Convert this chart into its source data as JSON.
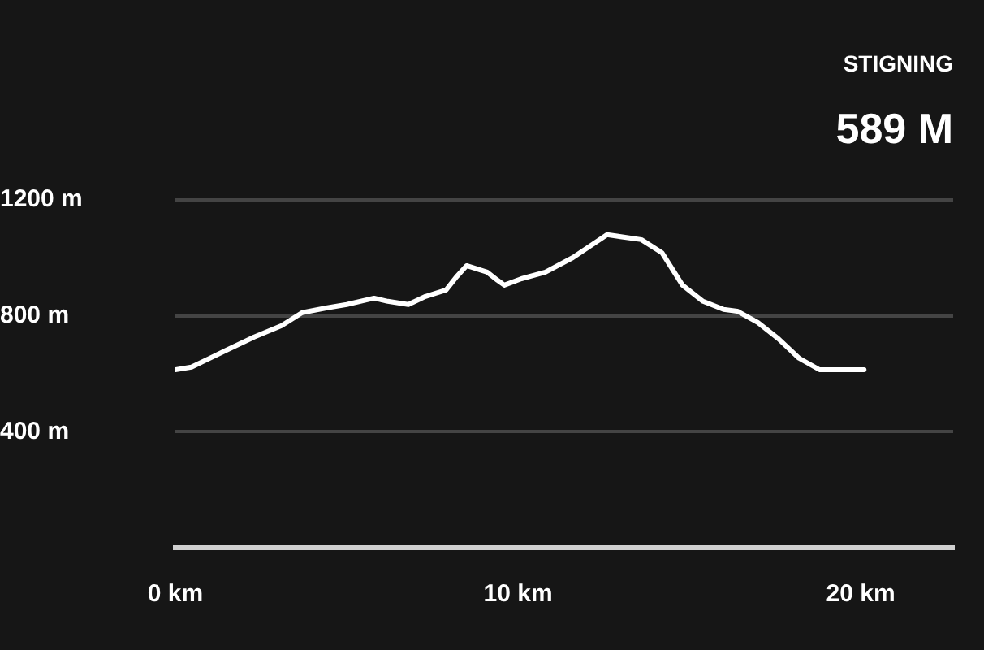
{
  "chart_data": {
    "type": "line",
    "annotations": [
      "STIGNING",
      "589 M"
    ],
    "x": [
      0,
      0.47,
      1.5,
      2.3,
      3.1,
      3.7,
      4.4,
      5.0,
      5.8,
      6.2,
      6.8,
      7.3,
      7.9,
      8.2,
      8.5,
      9.1,
      9.4,
      9.6,
      10.1,
      10.8,
      11.6,
      12.6,
      13.6,
      14.2,
      14.8,
      15.4,
      16.0,
      16.4,
      17.0,
      17.6,
      18.2,
      18.8,
      19.5,
      20.1
    ],
    "series": [
      {
        "color": "#ffffff",
        "values": [
          614,
          623,
          682,
          727,
          766,
          811,
          827,
          839,
          861,
          850,
          839,
          867,
          889,
          934,
          973,
          951,
          923,
          906,
          928,
          951,
          1001,
          1080,
          1063,
          1018,
          906,
          850,
          822,
          816,
          777,
          721,
          654,
          614,
          614,
          614
        ]
      }
    ],
    "xlim": [
      0,
      22.7
    ],
    "xticks": [
      {
        "value": 0,
        "label": "0 km"
      },
      {
        "value": 10,
        "label": "10 km"
      },
      {
        "value": 20,
        "label": "20 km"
      }
    ],
    "ylim": [
      0,
      1200
    ],
    "yticks": [
      {
        "value": 400,
        "label": "400 m"
      },
      {
        "value": 800,
        "label": "800 m"
      },
      {
        "value": 1200,
        "label": "1200 m"
      }
    ],
    "grid": "y",
    "legend": false,
    "marker": "none",
    "line_style": "solid"
  }
}
